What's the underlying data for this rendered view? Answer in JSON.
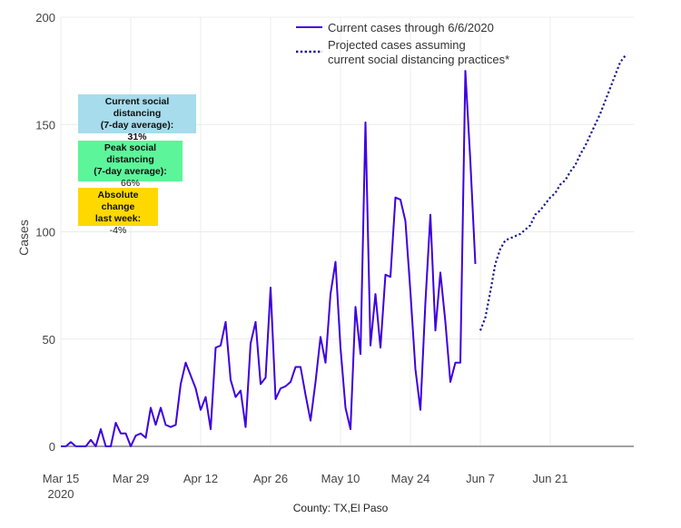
{
  "chart_data": {
    "type": "line",
    "title": "",
    "xlabel": "County: TX,El Paso",
    "ylabel": "Cases",
    "ylim": [
      0,
      200
    ],
    "yticks": [
      0,
      50,
      100,
      150,
      200
    ],
    "x_start": "2020-03-15",
    "xticks": [
      {
        "day": 0,
        "label": "Mar 15",
        "label2": "2020"
      },
      {
        "day": 14,
        "label": "Mar 29"
      },
      {
        "day": 28,
        "label": "Apr 12"
      },
      {
        "day": 42,
        "label": "Apr 26"
      },
      {
        "day": 56,
        "label": "May 10"
      },
      {
        "day": 70,
        "label": "May 24"
      },
      {
        "day": 84,
        "label": "Jun 7"
      },
      {
        "day": 98,
        "label": "Jun 21"
      }
    ],
    "series": [
      {
        "name": "Current cases through 6/6/2020",
        "style": "solid",
        "color": "#3d00e0",
        "start_day": 0,
        "values": [
          0,
          0,
          2,
          0,
          0,
          0,
          3,
          0,
          8,
          0,
          0,
          11,
          6,
          6,
          0,
          5,
          6,
          4,
          18,
          10,
          18,
          10,
          9,
          10,
          29,
          39,
          33,
          27,
          17,
          23,
          8,
          46,
          47,
          58,
          31,
          23,
          26,
          9,
          48,
          58,
          29,
          32,
          74,
          22,
          27,
          28,
          30,
          37,
          37,
          24,
          12,
          30,
          51,
          39,
          71,
          86,
          46,
          18,
          8,
          65,
          43,
          151,
          47,
          71,
          46,
          80,
          79,
          116,
          115,
          105,
          72,
          36,
          17,
          67,
          108,
          54,
          81,
          58,
          30,
          39,
          39,
          175,
          133,
          85
        ]
      },
      {
        "name": "Projected cases assuming current social distancing practices*",
        "style": "dotted",
        "color": "#1a1a8a",
        "start_day": 84,
        "values": [
          54,
          60,
          72,
          85,
          92,
          96,
          97,
          98,
          99,
          101,
          103,
          108,
          110,
          113,
          116,
          118,
          122,
          124,
          128,
          131,
          136,
          140,
          145,
          150,
          155,
          161,
          167,
          173,
          179,
          182
        ]
      }
    ],
    "legend": {
      "placement": "top-right",
      "items": [
        {
          "label": "Current cases through 6/6/2020",
          "style": "solid"
        },
        {
          "label_line1": "Projected cases assuming",
          "label_line2": "current social distancing practices*",
          "style": "dotted"
        }
      ]
    },
    "annotations": {
      "current_distancing": {
        "title1": "Current social distancing",
        "title2": "(7-day average):",
        "value": "31%",
        "color": "#a6dcec"
      },
      "peak_distancing": {
        "title1": "Peak social distancing",
        "title2": "(7-day average):",
        "value": "66%",
        "color": "#5cf59a"
      },
      "absolute_change": {
        "title1": "Absolute change",
        "title2": "last week:",
        "value": "-4%",
        "color": "#ffd800"
      }
    }
  }
}
